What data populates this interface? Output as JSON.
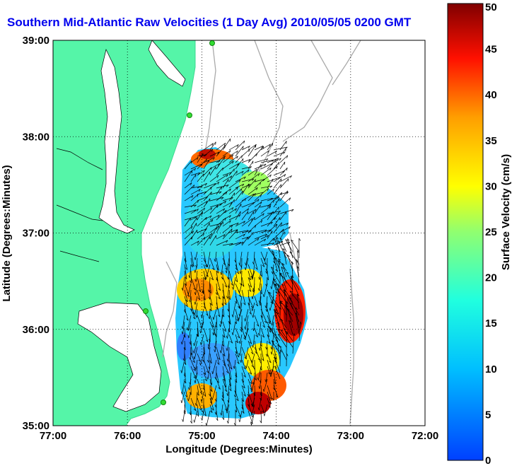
{
  "chart_data": {
    "type": "vector-field",
    "title": "Southern Mid-Atlantic Raw Velocities (1 Day Avg) 2010/05/05 0200 GMT",
    "xlabel": "Longitude (Degrees:Minutes)",
    "ylabel": "Latitude (Degrees:Minutes)",
    "xlim": [
      -77,
      -72
    ],
    "ylim": [
      35,
      39
    ],
    "xticks": [
      "77:00",
      "76:00",
      "75:00",
      "74:00",
      "73:00",
      "72:00"
    ],
    "yticks": [
      "35:00",
      "36:00",
      "37:00",
      "38:00",
      "39:00"
    ],
    "grid": true,
    "colorbar": {
      "label": "Surface Velocity (cm/s)",
      "min": 0,
      "max": 50,
      "ticks": [
        "0",
        "5",
        "10",
        "15",
        "20",
        "25",
        "30",
        "35",
        "40",
        "45",
        "50"
      ]
    },
    "land_color": "#55f5a8",
    "coverage": {
      "lon_range": [
        -75.8,
        -73.6
      ],
      "lat_range": [
        35.1,
        37.85
      ],
      "speed_range_cm_s": [
        5,
        50
      ]
    }
  }
}
